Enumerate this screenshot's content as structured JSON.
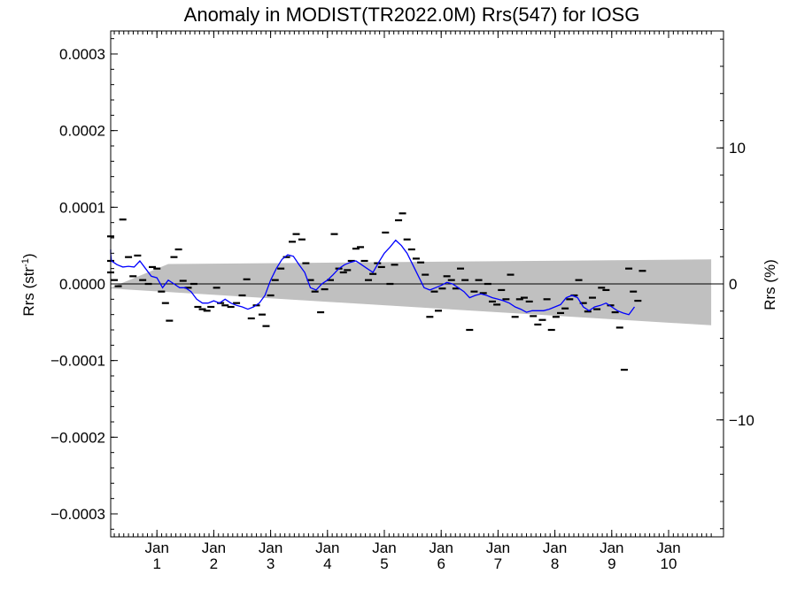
{
  "chart_data": {
    "type": "line",
    "title": "Anomaly in MODIST(TR2022.0M) Rrs(547) for IOSG",
    "xlabel": "",
    "ylabel": "Rrs (str",
    "ylabel_superscript": "-1",
    "ylabel_close": ")",
    "ylabel_right": "Rrs (%)",
    "xlim": [
      0,
      10.75
    ],
    "ylim": [
      -0.00033,
      0.00033
    ],
    "ylim_right": [
      -18.6,
      18.6
    ],
    "grid": false,
    "legend": "none",
    "x_ticks": [
      {
        "x": 1,
        "top": "Jan",
        "bottom": "1"
      },
      {
        "x": 2,
        "top": "Jan",
        "bottom": "2"
      },
      {
        "x": 3,
        "top": "Jan",
        "bottom": "3"
      },
      {
        "x": 4,
        "top": "Jan",
        "bottom": "4"
      },
      {
        "x": 5,
        "top": "Jan",
        "bottom": "5"
      },
      {
        "x": 6,
        "top": "Jan",
        "bottom": "6"
      },
      {
        "x": 7,
        "top": "Jan",
        "bottom": "7"
      },
      {
        "x": 8,
        "top": "Jan",
        "bottom": "8"
      },
      {
        "x": 9,
        "top": "Jan",
        "bottom": "9"
      },
      {
        "x": 10,
        "top": "Jan",
        "bottom": "10"
      }
    ],
    "y_ticks_left": [
      {
        "v": 0.0003,
        "label": "0.0003"
      },
      {
        "v": 0.0002,
        "label": "0.0002"
      },
      {
        "v": 0.0001,
        "label": "0.0001"
      },
      {
        "v": 0.0,
        "label": "0.0000"
      },
      {
        "v": -0.0001,
        "label": "−0.0001"
      },
      {
        "v": -0.0002,
        "label": "−0.0002"
      },
      {
        "v": -0.0003,
        "label": "−0.0003"
      }
    ],
    "y_ticks_right": [
      {
        "v": 10,
        "label": "10"
      },
      {
        "v": 0,
        "label": "0"
      },
      {
        "v": -10,
        "label": "−10"
      }
    ],
    "zero_line": 0,
    "band": {
      "color": "#c0c0c0",
      "upper": [
        [
          0,
          0.0
        ],
        [
          10.75,
          3.2e-05
        ]
      ],
      "lower": [
        [
          0,
          -6e-06
        ],
        [
          10.75,
          -5.4e-05
        ]
      ],
      "upper_start": [
        0,
        -5e-06
      ],
      "upper_knee": [
        1.2,
        2.6e-05
      ]
    },
    "series": [
      {
        "kind": "points",
        "color": "#000000",
        "points": [
          [
            0.05,
            6.2e-05
          ],
          [
            0.12,
            3e-05
          ],
          [
            0.18,
            1.5e-05
          ],
          [
            0.25,
            5e-06
          ],
          [
            0.32,
            -3e-06
          ],
          [
            0.4,
            8.4e-05
          ],
          [
            0.5,
            3.5e-05
          ],
          [
            0.58,
            1e-05
          ],
          [
            0.66,
            3.7e-05
          ],
          [
            0.75,
            5e-06
          ],
          [
            0.85,
            0.0
          ],
          [
            0.92,
            2.2e-05
          ],
          [
            1.0,
            2e-05
          ],
          [
            1.08,
            -1e-05
          ],
          [
            1.15,
            -2.5e-05
          ],
          [
            1.22,
            -4.8e-05
          ],
          [
            1.3,
            3.5e-05
          ],
          [
            1.38,
            4.5e-05
          ],
          [
            1.46,
            4e-06
          ],
          [
            1.55,
            -5e-06
          ],
          [
            1.65,
            0.0
          ],
          [
            1.72,
            -3e-05
          ],
          [
            1.8,
            -3.3e-05
          ],
          [
            1.88,
            -3.5e-05
          ],
          [
            1.95,
            -3e-05
          ],
          [
            2.05,
            -5e-06
          ],
          [
            2.12,
            -2.5e-05
          ],
          [
            2.2,
            -2.8e-05
          ],
          [
            2.3,
            -3e-05
          ],
          [
            2.4,
            -2.5e-05
          ],
          [
            2.5,
            -1.5e-05
          ],
          [
            2.58,
            6e-06
          ],
          [
            2.66,
            -4.5e-05
          ],
          [
            2.75,
            -2.8e-05
          ],
          [
            2.85,
            -4e-05
          ],
          [
            2.92,
            -5.5e-05
          ],
          [
            3.0,
            -1.5e-05
          ],
          [
            3.08,
            5e-06
          ],
          [
            3.18,
            2e-05
          ],
          [
            3.28,
            3.5e-05
          ],
          [
            3.38,
            5.5e-05
          ],
          [
            3.45,
            6.5e-05
          ],
          [
            3.55,
            5.8e-05
          ],
          [
            3.62,
            2.7e-05
          ],
          [
            3.7,
            5e-06
          ],
          [
            3.78,
            -1e-05
          ],
          [
            3.88,
            -3.7e-05
          ],
          [
            3.95,
            -7e-06
          ],
          [
            4.05,
            5e-06
          ],
          [
            4.12,
            6.5e-05
          ],
          [
            4.2,
            2e-05
          ],
          [
            4.28,
            1.5e-05
          ],
          [
            4.35,
            1.8e-05
          ],
          [
            4.42,
            3e-05
          ],
          [
            4.5,
            4.6e-05
          ],
          [
            4.58,
            4.8e-05
          ],
          [
            4.65,
            3e-05
          ],
          [
            4.72,
            5e-06
          ],
          [
            4.8,
            1.3e-05
          ],
          [
            4.88,
            2.7e-05
          ],
          [
            4.95,
            2.2e-05
          ],
          [
            5.02,
            6.7e-05
          ],
          [
            5.1,
            0.0
          ],
          [
            5.18,
            2.5e-05
          ],
          [
            5.25,
            8.3e-05
          ],
          [
            5.32,
            9.2e-05
          ],
          [
            5.4,
            5.8e-05
          ],
          [
            5.48,
            4.5e-05
          ],
          [
            5.56,
            3.3e-05
          ],
          [
            5.64,
            2.8e-05
          ],
          [
            5.72,
            1.2e-05
          ],
          [
            5.8,
            -4.3e-05
          ],
          [
            5.88,
            -1e-05
          ],
          [
            5.95,
            -3.5e-05
          ],
          [
            6.02,
            -6e-06
          ],
          [
            6.1,
            1e-05
          ],
          [
            6.18,
            5e-06
          ],
          [
            6.26,
            -6e-06
          ],
          [
            6.34,
            2e-05
          ],
          [
            6.42,
            5e-06
          ],
          [
            6.5,
            -6e-05
          ],
          [
            6.58,
            -1e-05
          ],
          [
            6.66,
            5e-06
          ],
          [
            6.74,
            -1.2e-05
          ],
          [
            6.82,
            0.0
          ],
          [
            6.9,
            -2.3e-05
          ],
          [
            6.98,
            -2.7e-05
          ],
          [
            7.06,
            -8e-06
          ],
          [
            7.14,
            -2e-05
          ],
          [
            7.22,
            1.2e-05
          ],
          [
            7.3,
            -4.3e-05
          ],
          [
            7.38,
            -2e-05
          ],
          [
            7.46,
            -1.8e-05
          ],
          [
            7.55,
            -2.3e-05
          ],
          [
            7.62,
            -4.2e-05
          ],
          [
            7.7,
            -5.3e-05
          ],
          [
            7.78,
            -4.7e-05
          ],
          [
            7.86,
            -2e-05
          ],
          [
            7.94,
            -6e-05
          ],
          [
            8.02,
            -4.3e-05
          ],
          [
            8.1,
            -3.8e-05
          ],
          [
            8.18,
            -3.2e-05
          ],
          [
            8.26,
            -2e-05
          ],
          [
            8.34,
            -1.5e-05
          ],
          [
            8.42,
            5e-06
          ],
          [
            8.5,
            -2.5e-05
          ],
          [
            8.58,
            -3.6e-05
          ],
          [
            8.66,
            -1.8e-05
          ],
          [
            8.74,
            -3.3e-05
          ],
          [
            8.82,
            -5e-06
          ],
          [
            8.9,
            -8e-06
          ],
          [
            8.98,
            -2.8e-05
          ],
          [
            9.06,
            -3.7e-05
          ],
          [
            9.14,
            -5.7e-05
          ],
          [
            9.22,
            -0.000112
          ],
          [
            9.3,
            2e-05
          ],
          [
            9.38,
            -1e-05
          ],
          [
            9.46,
            -2.2e-05
          ],
          [
            9.54,
            1.7e-05
          ]
        ]
      },
      {
        "kind": "line",
        "color": "#0000ff",
        "points": [
          [
            0.0,
            4.5e-05
          ],
          [
            0.1,
            4e-05
          ],
          [
            0.2,
            3e-05
          ],
          [
            0.3,
            2.5e-05
          ],
          [
            0.4,
            2.2e-05
          ],
          [
            0.5,
            2.3e-05
          ],
          [
            0.6,
            2.2e-05
          ],
          [
            0.7,
            3e-05
          ],
          [
            0.8,
            2e-05
          ],
          [
            0.9,
            1e-05
          ],
          [
            1.0,
            8e-06
          ],
          [
            1.1,
            -5e-06
          ],
          [
            1.2,
            5e-06
          ],
          [
            1.3,
            0.0
          ],
          [
            1.4,
            -5e-06
          ],
          [
            1.5,
            -5e-06
          ],
          [
            1.6,
            -1e-05
          ],
          [
            1.7,
            -2e-05
          ],
          [
            1.8,
            -2.5e-05
          ],
          [
            1.9,
            -2.5e-05
          ],
          [
            2.0,
            -2.2e-05
          ],
          [
            2.1,
            -2.5e-05
          ],
          [
            2.2,
            -2e-05
          ],
          [
            2.3,
            -2.5e-05
          ],
          [
            2.4,
            -2.8e-05
          ],
          [
            2.5,
            -3e-05
          ],
          [
            2.6,
            -3.3e-05
          ],
          [
            2.7,
            -3e-05
          ],
          [
            2.8,
            -2.5e-05
          ],
          [
            2.9,
            -1.5e-05
          ],
          [
            3.0,
            5e-06
          ],
          [
            3.1,
            2e-05
          ],
          [
            3.2,
            3.2e-05
          ],
          [
            3.3,
            3.8e-05
          ],
          [
            3.4,
            3.6e-05
          ],
          [
            3.5,
            2.5e-05
          ],
          [
            3.6,
            1.5e-05
          ],
          [
            3.7,
            -5e-06
          ],
          [
            3.8,
            -8e-06
          ],
          [
            3.9,
            0.0
          ],
          [
            4.0,
            5e-06
          ],
          [
            4.1,
            1.2e-05
          ],
          [
            4.2,
            2e-05
          ],
          [
            4.3,
            2.5e-05
          ],
          [
            4.4,
            2.8e-05
          ],
          [
            4.5,
            3e-05
          ],
          [
            4.6,
            2.5e-05
          ],
          [
            4.7,
            2e-05
          ],
          [
            4.8,
            1.5e-05
          ],
          [
            4.9,
            2.8e-05
          ],
          [
            5.0,
            4e-05
          ],
          [
            5.1,
            4.8e-05
          ],
          [
            5.2,
            5.7e-05
          ],
          [
            5.3,
            5e-05
          ],
          [
            5.4,
            4e-05
          ],
          [
            5.5,
            2.5e-05
          ],
          [
            5.6,
            1e-05
          ],
          [
            5.7,
            -5e-06
          ],
          [
            5.8,
            -8e-06
          ],
          [
            5.9,
            -5e-06
          ],
          [
            6.0,
            -2e-06
          ],
          [
            6.1,
            2e-06
          ],
          [
            6.2,
            0.0
          ],
          [
            6.3,
            -5e-06
          ],
          [
            6.4,
            -1e-05
          ],
          [
            6.5,
            -1.8e-05
          ],
          [
            6.6,
            -1.5e-05
          ],
          [
            6.7,
            -1.3e-05
          ],
          [
            6.8,
            -1.5e-05
          ],
          [
            6.9,
            -1.8e-05
          ],
          [
            7.0,
            -2e-05
          ],
          [
            7.1,
            -2.2e-05
          ],
          [
            7.2,
            -2.5e-05
          ],
          [
            7.3,
            -3e-05
          ],
          [
            7.4,
            -3.3e-05
          ],
          [
            7.5,
            -3.7e-05
          ],
          [
            7.6,
            -3.5e-05
          ],
          [
            7.7,
            -3.5e-05
          ],
          [
            7.8,
            -3.5e-05
          ],
          [
            7.9,
            -3.3e-05
          ],
          [
            8.0,
            -3e-05
          ],
          [
            8.1,
            -2.7e-05
          ],
          [
            8.2,
            -1.8e-05
          ],
          [
            8.3,
            -1.5e-05
          ],
          [
            8.4,
            -1.8e-05
          ],
          [
            8.5,
            -3e-05
          ],
          [
            8.6,
            -3.5e-05
          ],
          [
            8.7,
            -3e-05
          ],
          [
            8.8,
            -2.8e-05
          ],
          [
            8.9,
            -2.5e-05
          ],
          [
            9.0,
            -3e-05
          ],
          [
            9.1,
            -3.5e-05
          ],
          [
            9.2,
            -3.8e-05
          ],
          [
            9.3,
            -4e-05
          ],
          [
            9.4,
            -3e-05
          ]
        ]
      }
    ]
  }
}
